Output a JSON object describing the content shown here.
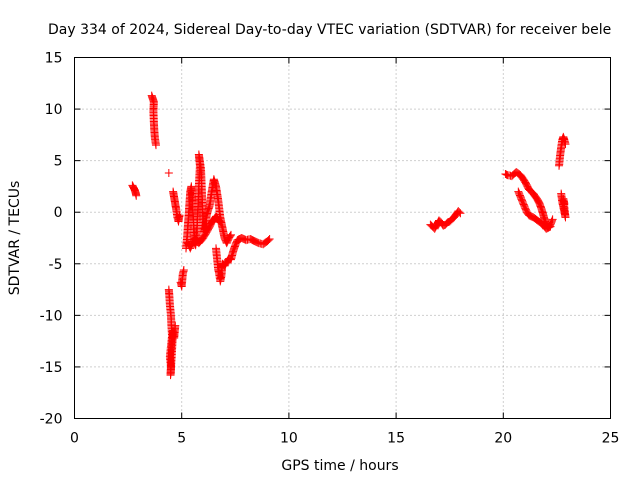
{
  "chart_data": {
    "type": "scatter",
    "title": "Day 334 of 2024, Sidereal Day-to-day VTEC variation (SDTVAR) for receiver bele",
    "xlabel": "GPS time / hours",
    "ylabel": "SDTVAR / TECUs",
    "xlim": [
      0,
      25
    ],
    "ylim": [
      -20,
      15
    ],
    "xticks": [
      0,
      5,
      10,
      15,
      20,
      25
    ],
    "yticks": [
      15,
      10,
      5,
      0,
      -5,
      -10,
      -15,
      -20
    ],
    "grid": true,
    "marker": "+",
    "color": "#ff0000",
    "series": [
      {
        "name": "SDTVAR",
        "segments": [
          [
            [
              2.7,
              2.6
            ],
            [
              2.75,
              2.4
            ],
            [
              2.8,
              2.2
            ],
            [
              2.85,
              1.9
            ],
            [
              2.88,
              1.6
            ]
          ],
          [
            [
              3.6,
              11.3
            ],
            [
              3.65,
              11.0
            ],
            [
              3.7,
              10.7
            ],
            [
              3.68,
              9.8
            ],
            [
              3.7,
              8.8
            ],
            [
              3.72,
              8.0
            ],
            [
              3.75,
              7.2
            ],
            [
              3.8,
              6.5
            ]
          ],
          [
            [
              4.4,
              3.8
            ]
          ],
          [
            [
              4.4,
              -7.5
            ],
            [
              4.42,
              -8.0
            ],
            [
              4.45,
              -9.0
            ],
            [
              4.5,
              -10.0
            ],
            [
              4.52,
              -11.0
            ],
            [
              4.55,
              -12.0
            ],
            [
              4.5,
              -13.0
            ],
            [
              4.45,
              -14.0
            ],
            [
              4.5,
              -15.0
            ],
            [
              4.48,
              -15.8
            ],
            [
              4.6,
              -11.5
            ],
            [
              4.65,
              -12.2
            ],
            [
              4.7,
              -11.0
            ]
          ],
          [
            [
              4.6,
              2.0
            ],
            [
              4.65,
              1.4
            ],
            [
              4.7,
              0.8
            ],
            [
              4.75,
              0.2
            ],
            [
              4.8,
              -0.5
            ],
            [
              4.85,
              -0.9
            ],
            [
              4.9,
              -0.3
            ]
          ],
          [
            [
              4.95,
              -6.8
            ],
            [
              5.0,
              -7.2
            ],
            [
              5.05,
              -6.0
            ],
            [
              5.1,
              -5.6
            ]
          ],
          [
            [
              5.2,
              -3.5
            ],
            [
              5.25,
              -2.5
            ],
            [
              5.3,
              -1.0
            ],
            [
              5.35,
              0.5
            ],
            [
              5.4,
              2.0
            ],
            [
              5.45,
              2.5
            ],
            [
              5.5,
              1.0
            ],
            [
              5.55,
              -1.0
            ],
            [
              5.6,
              -2.8
            ],
            [
              5.65,
              -3.2
            ],
            [
              5.7,
              -2.0
            ],
            [
              5.75,
              0.0
            ],
            [
              5.8,
              2.5
            ],
            [
              5.85,
              4.5
            ],
            [
              5.8,
              5.6
            ],
            [
              5.9,
              4.2
            ],
            [
              5.95,
              1.5
            ],
            [
              6.0,
              -1.0
            ],
            [
              6.05,
              -2.0
            ],
            [
              6.1,
              -1.5
            ],
            [
              6.15,
              -0.5
            ],
            [
              6.2,
              0.0
            ],
            [
              6.3,
              0.6
            ],
            [
              6.4,
              2.0
            ],
            [
              6.5,
              3.2
            ],
            [
              6.6,
              2.5
            ],
            [
              6.7,
              1.2
            ],
            [
              6.8,
              -0.5
            ],
            [
              6.9,
              -1.5
            ],
            [
              7.0,
              -2.5
            ],
            [
              7.1,
              -3.0
            ],
            [
              7.2,
              -2.5
            ],
            [
              7.3,
              -2.2
            ]
          ],
          [
            [
              5.3,
              -3.0
            ],
            [
              5.4,
              -3.5
            ],
            [
              5.5,
              -3.0
            ],
            [
              5.6,
              -2.5
            ],
            [
              5.7,
              -2.8
            ],
            [
              5.8,
              -3.0
            ],
            [
              6.0,
              -2.5
            ],
            [
              6.2,
              -1.8
            ],
            [
              6.4,
              -1.0
            ],
            [
              6.6,
              -0.4
            ],
            [
              6.8,
              -1.0
            ]
          ],
          [
            [
              6.6,
              -3.5
            ],
            [
              6.65,
              -4.5
            ],
            [
              6.7,
              -5.5
            ],
            [
              6.75,
              -6.0
            ],
            [
              6.8,
              -6.7
            ],
            [
              6.85,
              -6.2
            ],
            [
              6.9,
              -5.0
            ],
            [
              7.0,
              -5.2
            ],
            [
              7.1,
              -4.8
            ],
            [
              7.2,
              -4.5
            ],
            [
              7.3,
              -4.6
            ],
            [
              7.4,
              -3.8
            ],
            [
              7.5,
              -3.2
            ],
            [
              7.6,
              -2.7
            ],
            [
              7.8,
              -2.5
            ],
            [
              8.0,
              -2.7
            ],
            [
              8.2,
              -2.6
            ],
            [
              8.4,
              -2.8
            ],
            [
              8.6,
              -3.0
            ],
            [
              8.8,
              -3.1
            ],
            [
              9.0,
              -2.8
            ],
            [
              9.1,
              -2.6
            ]
          ],
          [
            [
              16.6,
              -1.2
            ],
            [
              16.7,
              -1.4
            ],
            [
              16.8,
              -1.6
            ],
            [
              16.9,
              -1.2
            ],
            [
              17.0,
              -0.8
            ],
            [
              17.1,
              -1.0
            ],
            [
              17.2,
              -1.3
            ],
            [
              17.3,
              -1.2
            ],
            [
              17.4,
              -1.0
            ],
            [
              17.5,
              -0.9
            ],
            [
              17.6,
              -0.7
            ],
            [
              17.7,
              -0.5
            ],
            [
              17.8,
              -0.2
            ],
            [
              17.9,
              0.1
            ],
            [
              18.0,
              -0.1
            ]
          ],
          [
            [
              20.1,
              3.7
            ],
            [
              20.2,
              3.6
            ],
            [
              20.4,
              3.5
            ],
            [
              20.6,
              3.9
            ],
            [
              20.8,
              3.6
            ],
            [
              21.0,
              3.0
            ],
            [
              21.2,
              2.2
            ],
            [
              21.4,
              1.8
            ],
            [
              21.6,
              1.2
            ],
            [
              21.7,
              0.8
            ],
            [
              21.8,
              0.2
            ],
            [
              21.9,
              -0.5
            ],
            [
              22.0,
              -1.2
            ],
            [
              22.1,
              -1.5
            ],
            [
              22.2,
              -1.2
            ],
            [
              22.3,
              -0.7
            ]
          ],
          [
            [
              20.7,
              2.0
            ],
            [
              20.8,
              1.5
            ],
            [
              20.9,
              1.0
            ],
            [
              21.0,
              0.5
            ],
            [
              21.1,
              0.0
            ],
            [
              21.2,
              -0.3
            ],
            [
              21.4,
              -0.5
            ],
            [
              21.6,
              -0.8
            ],
            [
              21.8,
              -1.1
            ],
            [
              22.0,
              -1.6
            ],
            [
              22.2,
              -1.4
            ]
          ],
          [
            [
              22.6,
              4.5
            ],
            [
              22.65,
              5.5
            ],
            [
              22.7,
              6.3
            ],
            [
              22.75,
              7.0
            ],
            [
              22.8,
              7.3
            ],
            [
              22.85,
              7.0
            ],
            [
              22.9,
              6.6
            ]
          ],
          [
            [
              22.7,
              1.8
            ],
            [
              22.75,
              1.0
            ],
            [
              22.8,
              0.5
            ],
            [
              22.85,
              0.0
            ],
            [
              22.9,
              -0.5
            ],
            [
              22.8,
              1.3
            ],
            [
              22.85,
              0.8
            ]
          ]
        ]
      }
    ]
  }
}
